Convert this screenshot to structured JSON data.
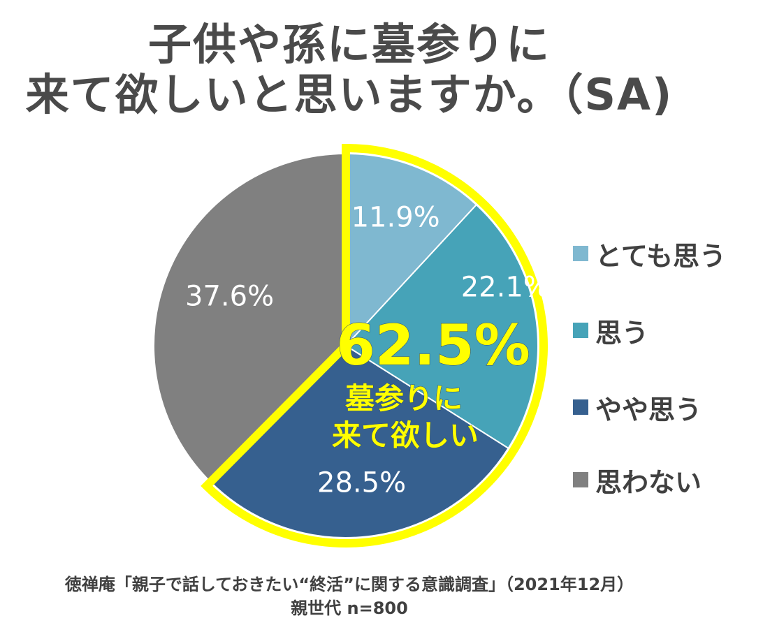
{
  "title": {
    "line1": "子供や孫に墓参りに",
    "line2": "来て欲しいと思いますか。（SA)"
  },
  "chart_data": {
    "type": "pie",
    "categories": [
      "とても思う",
      "思う",
      "やや思う",
      "思わない"
    ],
    "values": [
      11.9,
      22.1,
      28.5,
      37.6
    ],
    "labels": [
      "11.9%",
      "22.1%",
      "28.5%",
      "37.6%"
    ],
    "colors": [
      "#7fb8d0",
      "#46a3b8",
      "#36608f",
      "#808080"
    ],
    "highlight": {
      "categories": [
        "とても思う",
        "思う",
        "やや思う"
      ],
      "total_label": "62.5%",
      "caption_line1": "墓参りに",
      "caption_line2": "来て欲しい",
      "color": "#ffff00"
    },
    "legend_position": "right"
  },
  "source": {
    "line1": "徳禅庵「親子で話しておきたい“終活”に関する意識調査」（2021年12月）",
    "line2": "親世代 n=800"
  }
}
